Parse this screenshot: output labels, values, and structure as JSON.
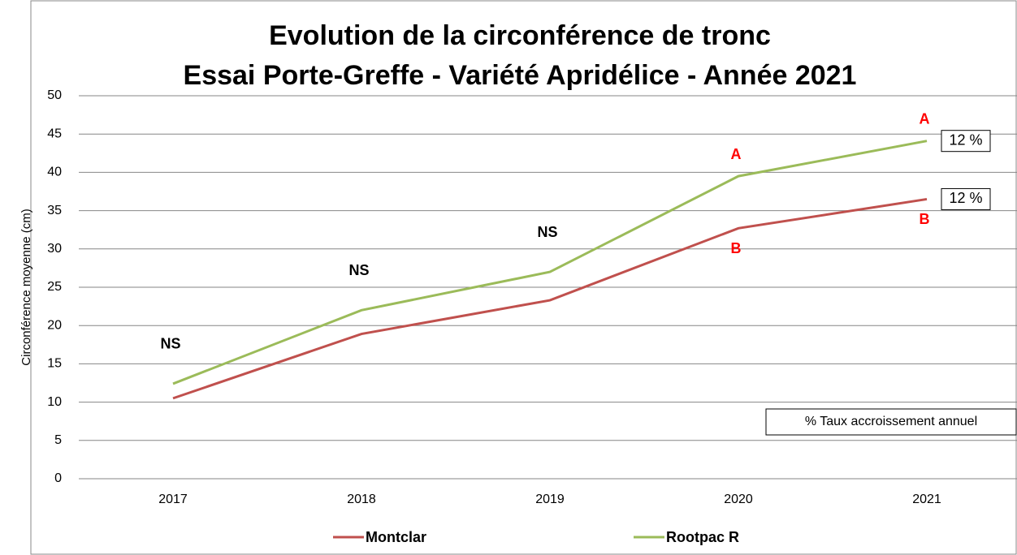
{
  "chart_data": {
    "type": "line",
    "title": [
      "Evolution de la circonférence de tronc",
      "Essai Porte-Greffe - Variété Apridélice - Année 2021"
    ],
    "y_label": "Circonférence  moyenne (cm)",
    "categories": [
      "2017",
      "2018",
      "2019",
      "2020",
      "2021"
    ],
    "series": [
      {
        "name": "Montclar",
        "color": "#c0504d",
        "values": [
          10.5,
          18.9,
          23.3,
          32.7,
          36.5
        ]
      },
      {
        "name": "Rootpac R",
        "color": "#9bbb59",
        "values": [
          12.4,
          22,
          27,
          39.5,
          44.1
        ]
      }
    ],
    "ylim": [
      0,
      50
    ],
    "yticks": [
      0,
      5,
      10,
      15,
      20,
      25,
      30,
      35,
      40,
      45,
      50
    ],
    "grid": true,
    "annotations": [
      {
        "text": "NS",
        "x": "2017",
        "color": "#000000"
      },
      {
        "text": "NS",
        "x": "2018",
        "color": "#000000"
      },
      {
        "text": "NS",
        "x": "2019",
        "color": "#000000"
      },
      {
        "text": "A",
        "x": "2020",
        "series": "Rootpac R",
        "color": "#ff0000"
      },
      {
        "text": "B",
        "x": "2020",
        "series": "Montclar",
        "color": "#ff0000"
      },
      {
        "text": "A",
        "x": "2021",
        "series": "Rootpac R",
        "color": "#ff0000"
      },
      {
        "text": "B",
        "x": "2021",
        "series": "Montclar",
        "color": "#ff0000"
      }
    ],
    "growth_labels": [
      {
        "text": "12 %",
        "series": "Rootpac R"
      },
      {
        "text": "12 %",
        "series": "Montclar"
      }
    ],
    "note": "% Taux accroissement annuel",
    "legend": "bottom"
  }
}
